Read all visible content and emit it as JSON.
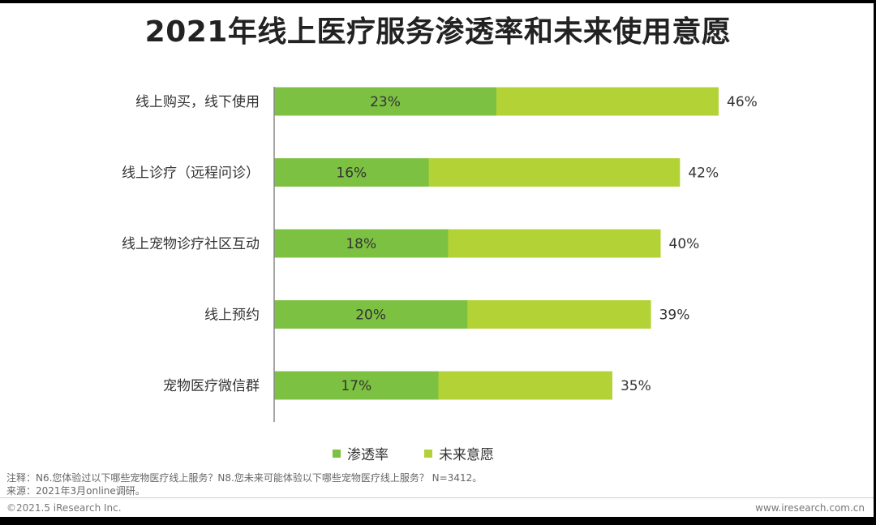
{
  "title": "2021年线上医疗服务渗透率和未来使用意愿",
  "colors": {
    "penetration": "#7dc142",
    "intention": "#b2d236",
    "axis": "#888888",
    "text": "#333333"
  },
  "chart_data": {
    "type": "bar",
    "orientation": "horizontal",
    "categories": [
      "线上购买，线下使用",
      "线上诊疗（远程问诊）",
      "线上宠物诊疗社区互动",
      "线上预约",
      "宠物医疗微信群"
    ],
    "series": [
      {
        "name": "渗透率",
        "values": [
          23,
          16,
          18,
          20,
          17
        ],
        "labels": [
          "23%",
          "16%",
          "18%",
          "20%",
          "17%"
        ]
      },
      {
        "name": "未来意愿",
        "values": [
          46,
          42,
          40,
          39,
          35
        ],
        "labels": [
          "46%",
          "42%",
          "40%",
          "39%",
          "35%"
        ]
      }
    ],
    "overlay": true,
    "xlim": [
      0,
      50
    ],
    "legend_position": "bottom",
    "grid": false
  },
  "notes": {
    "note1": "注释：N6.您体验过以下哪些宠物医疗线上服务？N8.您未来可能体验以下哪些宠物医疗线上服务？ N=3412。",
    "note2": "来源：2021年3月online调研。"
  },
  "footer": {
    "copyright": "©2021.5 iResearch Inc.",
    "website": "www.iresearch.com.cn"
  }
}
